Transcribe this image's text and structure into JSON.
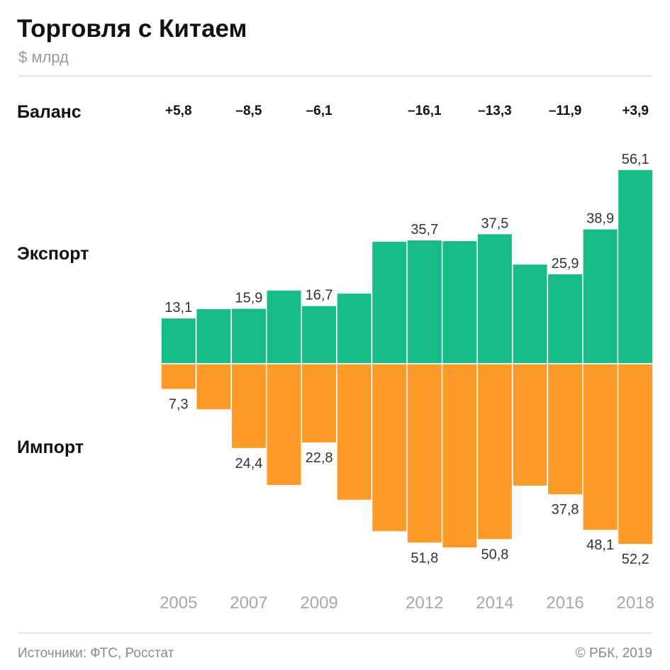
{
  "chart_data": {
    "type": "bar",
    "title": "Торговля с Китаем",
    "subtitle": "$ млрд",
    "categories": [
      2005,
      2006,
      2007,
      2008,
      2009,
      2010,
      2011,
      2012,
      2013,
      2014,
      2015,
      2016,
      2017,
      2018
    ],
    "year_labels_shown": [
      2005,
      2007,
      2009,
      2012,
      2014,
      2016,
      2018
    ],
    "series": [
      {
        "name": "Экспорт",
        "color": "#16bb87",
        "values": [
          13.1,
          15.8,
          15.9,
          21.2,
          16.7,
          20.3,
          35.3,
          35.7,
          35.5,
          37.5,
          28.7,
          25.9,
          38.9,
          56.1
        ],
        "labeled": [
          2005,
          2007,
          2009,
          2012,
          2014,
          2016,
          2017,
          2018
        ]
      },
      {
        "name": "Импорт",
        "color": "#fd9a28",
        "values": [
          7.3,
          13.2,
          24.4,
          35.1,
          22.8,
          39.4,
          48.5,
          51.8,
          53.2,
          50.8,
          35.3,
          37.8,
          48.1,
          52.2
        ],
        "labeled": [
          2005,
          2007,
          2009,
          2012,
          2014,
          2016,
          2017,
          2018
        ]
      }
    ],
    "balance": {
      "label": "Баланс",
      "items": [
        {
          "year": 2005,
          "text": "+5,8"
        },
        {
          "year": 2007,
          "text": "–8,5"
        },
        {
          "year": 2009,
          "text": "–6,1"
        },
        {
          "year": 2012,
          "text": "–16,1"
        },
        {
          "year": 2014,
          "text": "–13,3"
        },
        {
          "year": 2016,
          "text": "–11,9"
        },
        {
          "year": 2018,
          "text": "+3,9"
        }
      ]
    },
    "ylim": [
      -56.1,
      56.1
    ],
    "grid": false,
    "legend": "left row labels"
  },
  "footer": {
    "source": "Источники: ФТС, Росстат",
    "copyright": "© РБК, 2019"
  }
}
